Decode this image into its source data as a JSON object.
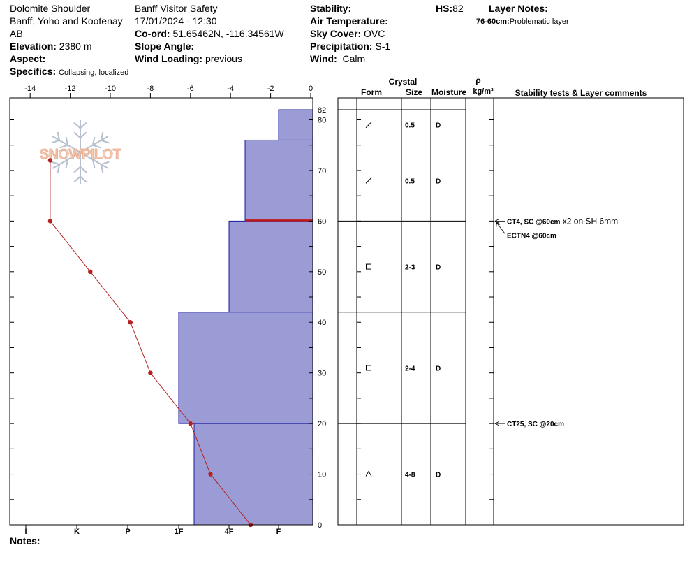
{
  "header": {
    "location": "Dolomite Shoulder",
    "region": "Banff, Yoho and Kootenay",
    "province": "AB",
    "elevation_label": "Elevation:",
    "elevation": "2380 m",
    "aspect_label": "Aspect:",
    "aspect": "",
    "specifics_label": "Specifics:",
    "specifics": "Collapsing, localized",
    "observer": "Banff  Visitor Safety",
    "datetime": "17/01/2024 - 12:30",
    "coord_label": "Co-ord:",
    "coord": "51.65462N, -116.34561W",
    "slope_label": "Slope Angle:",
    "slope": "",
    "wind_loading_label": "Wind Loading:",
    "wind_loading": "previous",
    "stability_label": "Stability:",
    "stability": "",
    "air_temp_label": "Air Temperature:",
    "air_temp": "",
    "sky_cover_label": "Sky Cover:",
    "sky_cover": "OVC",
    "precip_label": "Precipitation:",
    "precip": "S-1",
    "wind_label": "Wind:",
    "wind": "Calm",
    "hs_label": "HS:",
    "hs": "82",
    "layer_notes_label": "Layer Notes:",
    "layer_note_range": "76-60cm:",
    "layer_note_text": "Problematic layer"
  },
  "notes_label": "Notes:",
  "watermark_text": "SNOWPILOT",
  "colors": {
    "hardness_fill": "#9b9bd6",
    "hardness_stroke": "#1a1aa0",
    "temperature": "#b52020",
    "weak_layer": "#c01818"
  },
  "chart_data": {
    "type": "snow-profile",
    "temp_axis": {
      "ticks": [
        -14,
        -12,
        -10,
        -8,
        -6,
        -4,
        -2,
        0
      ]
    },
    "depth_axis": {
      "range": [
        0,
        82
      ],
      "ticks": [
        0,
        10,
        20,
        30,
        40,
        50,
        60,
        70,
        80
      ],
      "top_label": "82"
    },
    "hardness_axis": {
      "labels": [
        "I",
        "K",
        "P",
        "1F",
        "4F",
        "F"
      ]
    },
    "temperature_profile": [
      {
        "depth": 72,
        "temp": -13
      },
      {
        "depth": 60,
        "temp": -13
      },
      {
        "depth": 50,
        "temp": -11
      },
      {
        "depth": 40,
        "temp": -9
      },
      {
        "depth": 30,
        "temp": -8
      },
      {
        "depth": 20,
        "temp": -6
      },
      {
        "depth": 10,
        "temp": -5
      },
      {
        "depth": 0,
        "temp": -3
      }
    ],
    "layers": [
      {
        "top": 82,
        "bottom": 76,
        "hardness": "F",
        "form": "/",
        "size": "0.5",
        "moisture": "D"
      },
      {
        "top": 76,
        "bottom": 60,
        "hardness": "F+",
        "form": "/",
        "size": "0.5",
        "moisture": "D"
      },
      {
        "top": 60,
        "bottom": 42,
        "hardness": "4F",
        "form": "□",
        "size": "2-3",
        "moisture": "D"
      },
      {
        "top": 42,
        "bottom": 20,
        "hardness": "1F",
        "form": "□",
        "size": "2-4",
        "moisture": "D"
      },
      {
        "top": 20,
        "bottom": 0,
        "hardness": "1F-",
        "form": "^",
        "size": "4-8",
        "moisture": "D"
      }
    ],
    "weak_layer_depth": 60,
    "tests": [
      {
        "depth": 60,
        "code": "CT4, SC @60cm",
        "extra": "x2 on SH 6mm"
      },
      {
        "depth": 60,
        "code": "ECTN4 @60cm",
        "extra": ""
      },
      {
        "depth": 20,
        "code": "CT25, SC @20cm",
        "extra": ""
      }
    ],
    "columns": {
      "crystal": "Crystal",
      "form": "Form",
      "size": "Size",
      "moisture": "Moisture",
      "rho": "ρ",
      "rho_unit": "kg/m³",
      "comments": "Stability tests & Layer comments"
    }
  }
}
